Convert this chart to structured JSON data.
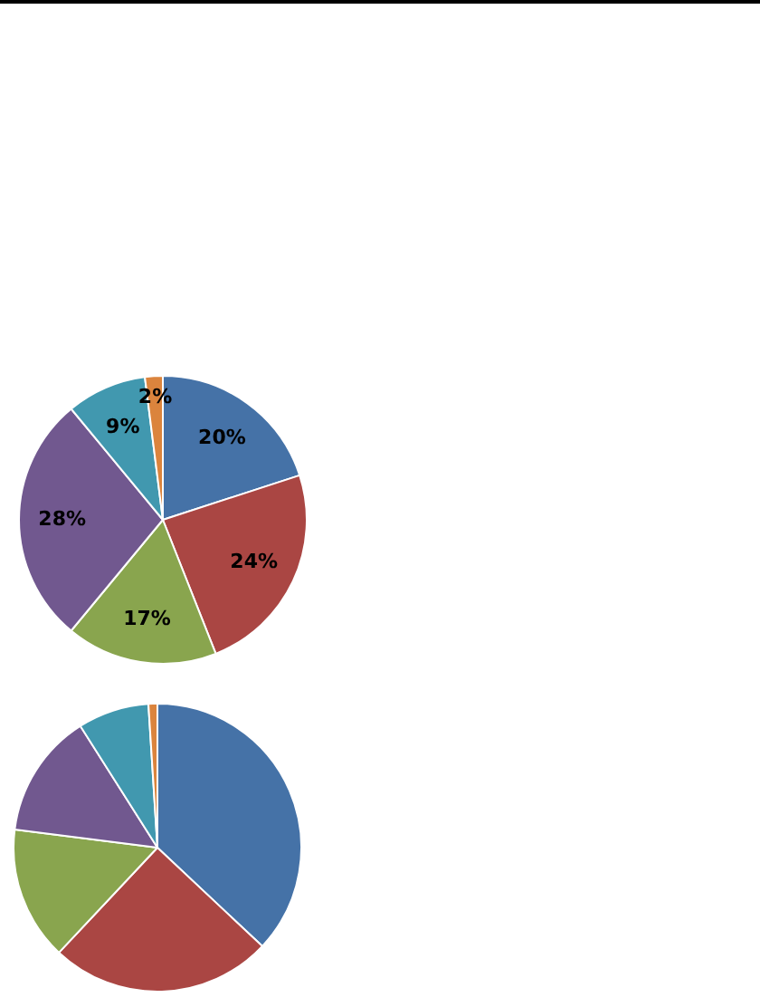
{
  "chart_data": [
    {
      "type": "pie",
      "categories": [
        null,
        null,
        null,
        null,
        null,
        null
      ],
      "values": [
        20,
        24,
        17,
        28,
        9,
        2
      ],
      "colors": [
        "#4572a7",
        "#aa4643",
        "#89a54e",
        "#71588f",
        "#4198af",
        "#db843d"
      ],
      "value_labels": [
        "20%",
        "24%",
        "17%",
        "28%",
        "9%",
        "2%"
      ]
    },
    {
      "type": "pie",
      "categories": [
        null,
        null,
        null,
        null,
        null,
        null
      ],
      "values": [
        37,
        25,
        15,
        14,
        8,
        1
      ],
      "colors": [
        "#4572a7",
        "#aa4643",
        "#89a54e",
        "#71588f",
        "#4198af",
        "#db843d"
      ]
    }
  ]
}
